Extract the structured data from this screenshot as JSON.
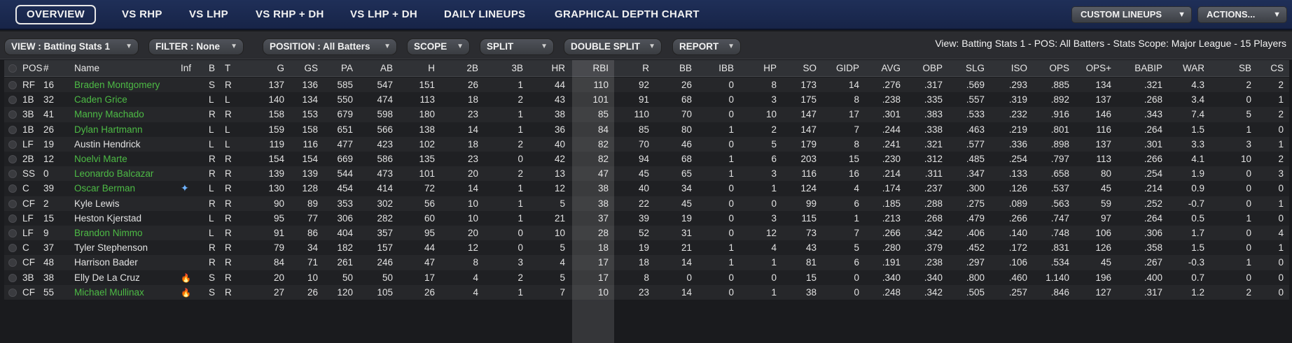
{
  "nav": {
    "tabs": [
      "OVERVIEW",
      "VS RHP",
      "VS LHP",
      "VS RHP + DH",
      "VS LHP + DH",
      "DAILY LINEUPS",
      "GRAPHICAL DEPTH CHART"
    ],
    "active_tab": "OVERVIEW",
    "custom_lineups_label": "CUSTOM LINEUPS",
    "actions_label": "ACTIONS..."
  },
  "filters": {
    "view": "VIEW : Batting Stats 1",
    "filter": "FILTER : None",
    "position": "POSITION : All Batters",
    "scope": "SCOPE",
    "split": "SPLIT",
    "double_split": "DOUBLE SPLIT",
    "report": "REPORT",
    "status": "View: Batting Stats 1 - POS: All Batters - Stats Scope: Major League - 15 Players"
  },
  "columns": [
    "POS",
    "#",
    "Name",
    "Inf",
    "B",
    "T",
    "G",
    "GS",
    "PA",
    "AB",
    "H",
    "2B",
    "3B",
    "HR",
    "RBI",
    "R",
    "BB",
    "IBB",
    "HP",
    "SO",
    "GIDP",
    "AVG",
    "OBP",
    "SLG",
    "ISO",
    "OPS",
    "OPS+",
    "BABIP",
    "WAR",
    "SB",
    "CS"
  ],
  "rows": [
    {
      "pos": "RF",
      "num": "16",
      "name": "Braden Montgomery",
      "green": true,
      "inf": "",
      "b": "S",
      "t": "R",
      "g": "137",
      "gs": "136",
      "pa": "585",
      "ab": "547",
      "h": "151",
      "d": "26",
      "tr": "1",
      "hr": "44",
      "rbi": "110",
      "r": "92",
      "bb": "26",
      "ibb": "0",
      "hp": "8",
      "so": "173",
      "gidp": "14",
      "avg": ".276",
      "obp": ".317",
      "slg": ".569",
      "iso": ".293",
      "ops": ".885",
      "opsp": "134",
      "babip": ".321",
      "war": "4.3",
      "sb": "2",
      "cs": "2"
    },
    {
      "pos": "1B",
      "num": "32",
      "name": "Caden Grice",
      "green": true,
      "inf": "",
      "b": "L",
      "t": "L",
      "g": "140",
      "gs": "134",
      "pa": "550",
      "ab": "474",
      "h": "113",
      "d": "18",
      "tr": "2",
      "hr": "43",
      "rbi": "101",
      "r": "91",
      "bb": "68",
      "ibb": "0",
      "hp": "3",
      "so": "175",
      "gidp": "8",
      "avg": ".238",
      "obp": ".335",
      "slg": ".557",
      "iso": ".319",
      "ops": ".892",
      "opsp": "137",
      "babip": ".268",
      "war": "3.4",
      "sb": "0",
      "cs": "1"
    },
    {
      "pos": "3B",
      "num": "41",
      "name": "Manny Machado",
      "green": true,
      "inf": "",
      "b": "R",
      "t": "R",
      "g": "158",
      "gs": "153",
      "pa": "679",
      "ab": "598",
      "h": "180",
      "d": "23",
      "tr": "1",
      "hr": "38",
      "rbi": "85",
      "r": "110",
      "bb": "70",
      "ibb": "0",
      "hp": "10",
      "so": "147",
      "gidp": "17",
      "avg": ".301",
      "obp": ".383",
      "slg": ".533",
      "iso": ".232",
      "ops": ".916",
      "opsp": "146",
      "babip": ".343",
      "war": "7.4",
      "sb": "5",
      "cs": "2"
    },
    {
      "pos": "1B",
      "num": "26",
      "name": "Dylan Hartmann",
      "green": true,
      "inf": "",
      "b": "L",
      "t": "L",
      "g": "159",
      "gs": "158",
      "pa": "651",
      "ab": "566",
      "h": "138",
      "d": "14",
      "tr": "1",
      "hr": "36",
      "rbi": "84",
      "r": "85",
      "bb": "80",
      "ibb": "1",
      "hp": "2",
      "so": "147",
      "gidp": "7",
      "avg": ".244",
      "obp": ".338",
      "slg": ".463",
      "iso": ".219",
      "ops": ".801",
      "opsp": "116",
      "babip": ".264",
      "war": "1.5",
      "sb": "1",
      "cs": "0"
    },
    {
      "pos": "LF",
      "num": "19",
      "name": "Austin Hendrick",
      "green": false,
      "inf": "",
      "b": "L",
      "t": "L",
      "g": "119",
      "gs": "116",
      "pa": "477",
      "ab": "423",
      "h": "102",
      "d": "18",
      "tr": "2",
      "hr": "40",
      "rbi": "82",
      "r": "70",
      "bb": "46",
      "ibb": "0",
      "hp": "5",
      "so": "179",
      "gidp": "8",
      "avg": ".241",
      "obp": ".321",
      "slg": ".577",
      "iso": ".336",
      "ops": ".898",
      "opsp": "137",
      "babip": ".301",
      "war": "3.3",
      "sb": "3",
      "cs": "1"
    },
    {
      "pos": "2B",
      "num": "12",
      "name": "Noelvi Marte",
      "green": true,
      "inf": "",
      "b": "R",
      "t": "R",
      "g": "154",
      "gs": "154",
      "pa": "669",
      "ab": "586",
      "h": "135",
      "d": "23",
      "tr": "0",
      "hr": "42",
      "rbi": "82",
      "r": "94",
      "bb": "68",
      "ibb": "1",
      "hp": "6",
      "so": "203",
      "gidp": "15",
      "avg": ".230",
      "obp": ".312",
      "slg": ".485",
      "iso": ".254",
      "ops": ".797",
      "opsp": "113",
      "babip": ".266",
      "war": "4.1",
      "sb": "10",
      "cs": "2"
    },
    {
      "pos": "SS",
      "num": "0",
      "name": "Leonardo Balcazar",
      "green": true,
      "inf": "",
      "b": "R",
      "t": "R",
      "g": "139",
      "gs": "139",
      "pa": "544",
      "ab": "473",
      "h": "101",
      "d": "20",
      "tr": "2",
      "hr": "13",
      "rbi": "47",
      "r": "45",
      "bb": "65",
      "ibb": "1",
      "hp": "3",
      "so": "116",
      "gidp": "16",
      "avg": ".214",
      "obp": ".311",
      "slg": ".347",
      "iso": ".133",
      "ops": ".658",
      "opsp": "80",
      "babip": ".254",
      "war": "1.9",
      "sb": "0",
      "cs": "3"
    },
    {
      "pos": "C",
      "num": "39",
      "name": "Oscar Berman",
      "green": true,
      "inf": "star",
      "b": "L",
      "t": "R",
      "g": "130",
      "gs": "128",
      "pa": "454",
      "ab": "414",
      "h": "72",
      "d": "14",
      "tr": "1",
      "hr": "12",
      "rbi": "38",
      "r": "40",
      "bb": "34",
      "ibb": "0",
      "hp": "1",
      "so": "124",
      "gidp": "4",
      "avg": ".174",
      "obp": ".237",
      "slg": ".300",
      "iso": ".126",
      "ops": ".537",
      "opsp": "45",
      "babip": ".214",
      "war": "0.9",
      "sb": "0",
      "cs": "0"
    },
    {
      "pos": "CF",
      "num": "2",
      "name": "Kyle Lewis",
      "green": false,
      "inf": "",
      "b": "R",
      "t": "R",
      "g": "90",
      "gs": "89",
      "pa": "353",
      "ab": "302",
      "h": "56",
      "d": "10",
      "tr": "1",
      "hr": "5",
      "rbi": "38",
      "r": "22",
      "bb": "45",
      "ibb": "0",
      "hp": "0",
      "so": "99",
      "gidp": "6",
      "avg": ".185",
      "obp": ".288",
      "slg": ".275",
      "iso": ".089",
      "ops": ".563",
      "opsp": "59",
      "babip": ".252",
      "war": "-0.7",
      "sb": "0",
      "cs": "1"
    },
    {
      "pos": "LF",
      "num": "15",
      "name": "Heston Kjerstad",
      "green": false,
      "inf": "",
      "b": "L",
      "t": "R",
      "g": "95",
      "gs": "77",
      "pa": "306",
      "ab": "282",
      "h": "60",
      "d": "10",
      "tr": "1",
      "hr": "21",
      "rbi": "37",
      "r": "39",
      "bb": "19",
      "ibb": "0",
      "hp": "3",
      "so": "115",
      "gidp": "1",
      "avg": ".213",
      "obp": ".268",
      "slg": ".479",
      "iso": ".266",
      "ops": ".747",
      "opsp": "97",
      "babip": ".264",
      "war": "0.5",
      "sb": "1",
      "cs": "0"
    },
    {
      "pos": "LF",
      "num": "9",
      "name": "Brandon Nimmo",
      "green": true,
      "inf": "",
      "b": "L",
      "t": "R",
      "g": "91",
      "gs": "86",
      "pa": "404",
      "ab": "357",
      "h": "95",
      "d": "20",
      "tr": "0",
      "hr": "10",
      "rbi": "28",
      "r": "52",
      "bb": "31",
      "ibb": "0",
      "hp": "12",
      "so": "73",
      "gidp": "7",
      "avg": ".266",
      "obp": ".342",
      "slg": ".406",
      "iso": ".140",
      "ops": ".748",
      "opsp": "106",
      "babip": ".306",
      "war": "1.7",
      "sb": "0",
      "cs": "4"
    },
    {
      "pos": "C",
      "num": "37",
      "name": "Tyler Stephenson",
      "green": false,
      "inf": "",
      "b": "R",
      "t": "R",
      "g": "79",
      "gs": "34",
      "pa": "182",
      "ab": "157",
      "h": "44",
      "d": "12",
      "tr": "0",
      "hr": "5",
      "rbi": "18",
      "r": "19",
      "bb": "21",
      "ibb": "1",
      "hp": "4",
      "so": "43",
      "gidp": "5",
      "avg": ".280",
      "obp": ".379",
      "slg": ".452",
      "iso": ".172",
      "ops": ".831",
      "opsp": "126",
      "babip": ".358",
      "war": "1.5",
      "sb": "0",
      "cs": "1"
    },
    {
      "pos": "CF",
      "num": "48",
      "name": "Harrison Bader",
      "green": false,
      "inf": "",
      "b": "R",
      "t": "R",
      "g": "84",
      "gs": "71",
      "pa": "261",
      "ab": "246",
      "h": "47",
      "d": "8",
      "tr": "3",
      "hr": "4",
      "rbi": "17",
      "r": "18",
      "bb": "14",
      "ibb": "1",
      "hp": "1",
      "so": "81",
      "gidp": "6",
      "avg": ".191",
      "obp": ".238",
      "slg": ".297",
      "iso": ".106",
      "ops": ".534",
      "opsp": "45",
      "babip": ".267",
      "war": "-0.3",
      "sb": "1",
      "cs": "0"
    },
    {
      "pos": "3B",
      "num": "38",
      "name": "Elly De La Cruz",
      "green": false,
      "inf": "fire",
      "b": "S",
      "t": "R",
      "g": "20",
      "gs": "10",
      "pa": "50",
      "ab": "50",
      "h": "17",
      "d": "4",
      "tr": "2",
      "hr": "5",
      "rbi": "17",
      "r": "8",
      "bb": "0",
      "ibb": "0",
      "hp": "0",
      "so": "15",
      "gidp": "0",
      "avg": ".340",
      "obp": ".340",
      "slg": ".800",
      "iso": ".460",
      "ops": "1.140",
      "opsp": "196",
      "babip": ".400",
      "war": "0.7",
      "sb": "0",
      "cs": "0"
    },
    {
      "pos": "CF",
      "num": "55",
      "name": "Michael Mullinax",
      "green": true,
      "inf": "fire",
      "b": "S",
      "t": "R",
      "g": "27",
      "gs": "26",
      "pa": "120",
      "ab": "105",
      "h": "26",
      "d": "4",
      "tr": "1",
      "hr": "7",
      "rbi": "10",
      "r": "23",
      "bb": "14",
      "ibb": "0",
      "hp": "1",
      "so": "38",
      "gidp": "0",
      "avg": ".248",
      "obp": ".342",
      "slg": ".505",
      "iso": ".257",
      "ops": ".846",
      "opsp": "127",
      "babip": ".317",
      "war": "1.2",
      "sb": "2",
      "cs": "0"
    }
  ],
  "colors": {
    "accent_green": "#4dbb45",
    "nav_bg": "#1f2f58",
    "fire": "#ff5a1f"
  }
}
